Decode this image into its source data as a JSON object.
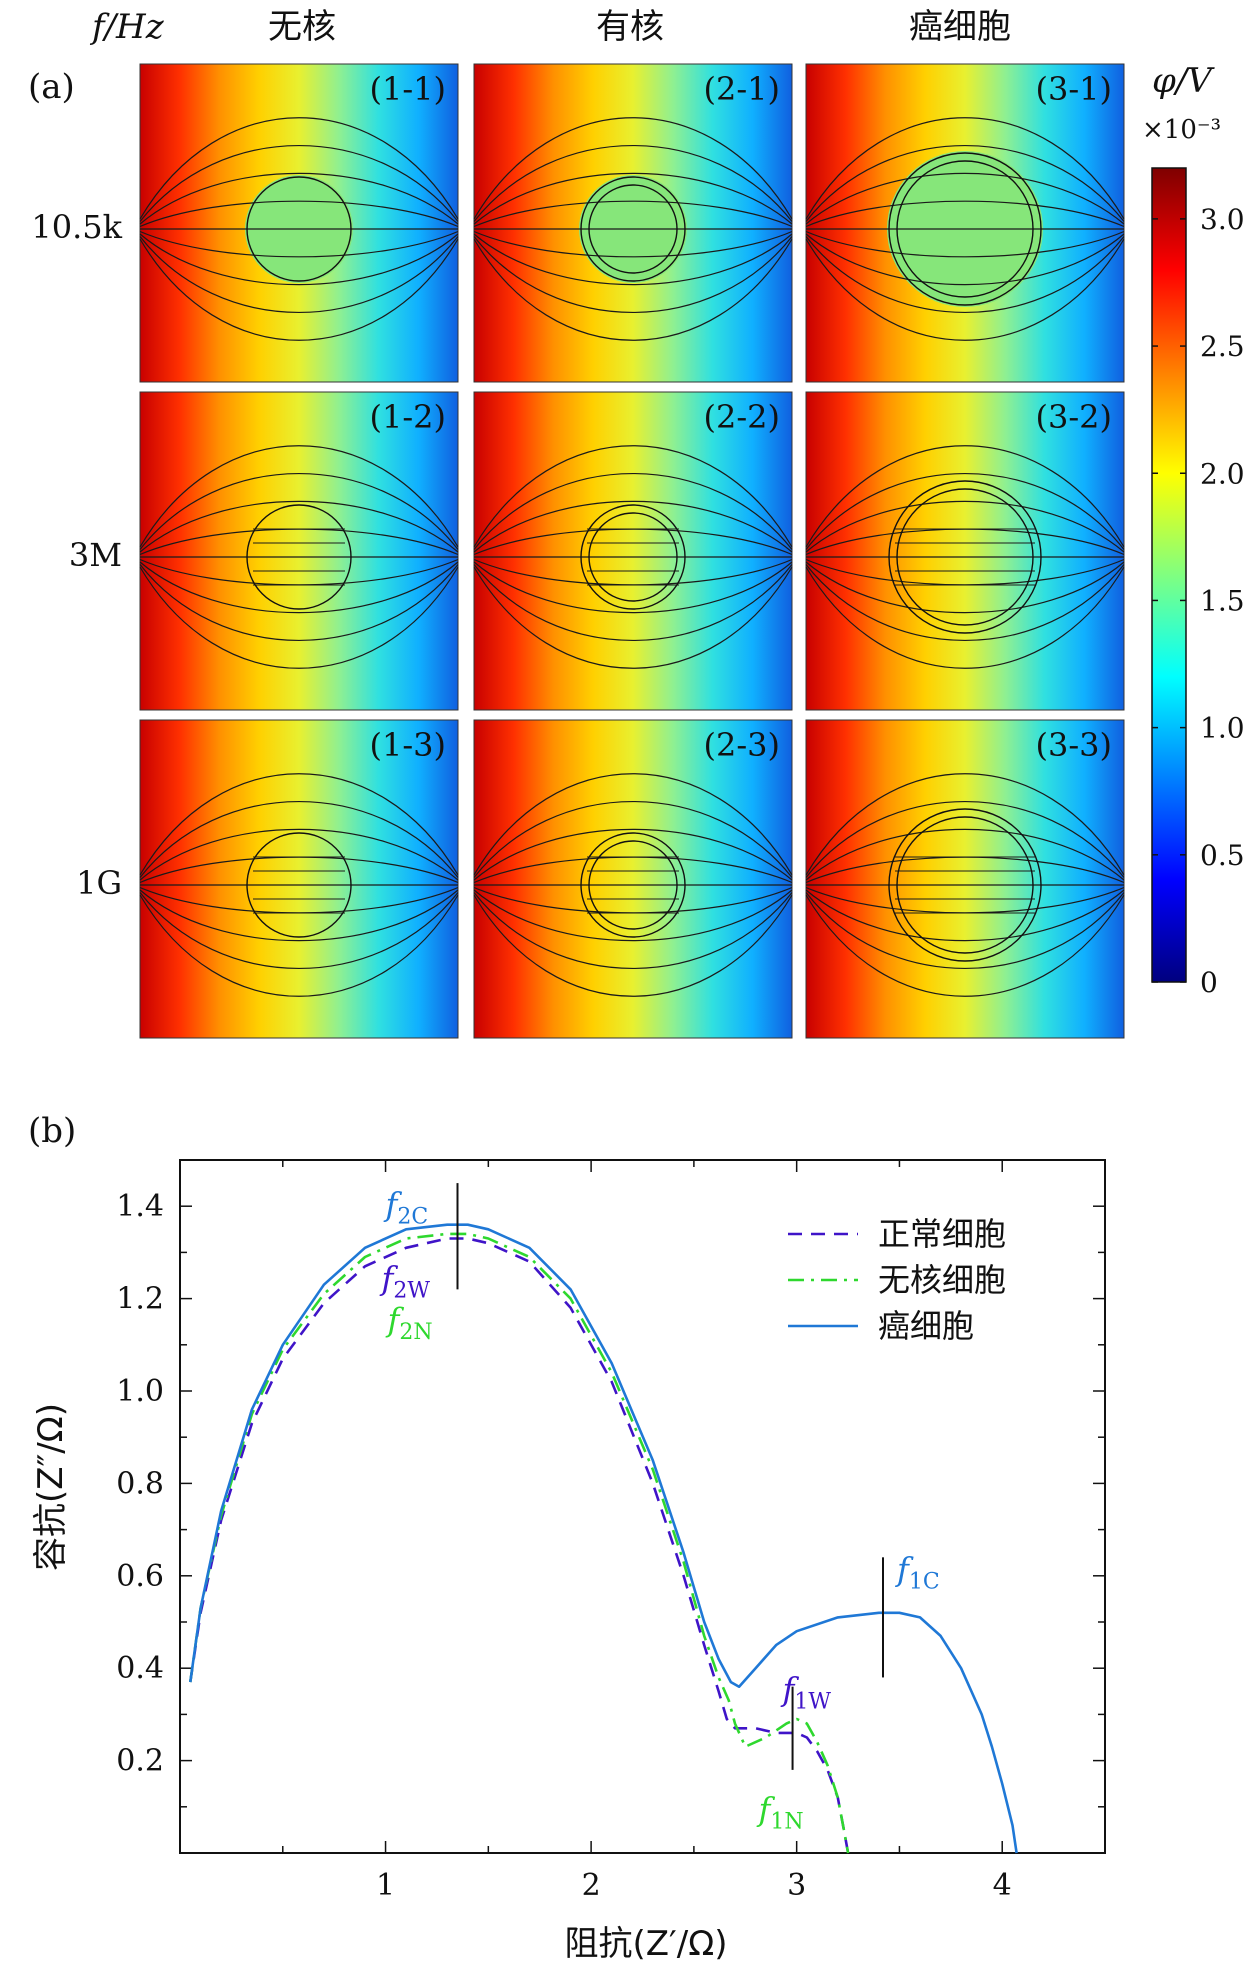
{
  "chart_data": [
    {
      "type": "heatmap",
      "panel_label": "(a)",
      "row_header": "f/Hz",
      "column_headers": [
        "无核",
        "有核",
        "癌细胞"
      ],
      "row_labels": [
        "10.5k",
        "3M",
        "1G"
      ],
      "cell_labels": [
        [
          "(1-1)",
          "(2-1)",
          "(3-1)"
        ],
        [
          "(1-2)",
          "(2-2)",
          "(3-2)"
        ],
        [
          "(1-3)",
          "(2-3)",
          "(3-3)"
        ]
      ],
      "colorbar": {
        "label": "φ/V",
        "multiplier": "×10⁻³",
        "ticks": [
          "3.0",
          "2.5",
          "2.0",
          "1.5",
          "1.0",
          "0.5",
          "0"
        ],
        "range": [
          0,
          3.2
        ],
        "colormap": "jet"
      }
    },
    {
      "type": "line",
      "panel_label": "(b)",
      "xlabel": "阻抗(Z′/Ω)",
      "ylabel": "容抗(Z″/Ω)",
      "xlim": [
        0,
        4.5
      ],
      "ylim": [
        0,
        1.5
      ],
      "xticks": [
        "1",
        "2",
        "3",
        "4"
      ],
      "yticks": [
        "0.2",
        "0.4",
        "0.6",
        "0.8",
        "1.0",
        "1.2",
        "1.4"
      ],
      "legend_position": "top-right",
      "series": [
        {
          "name": "正常细胞",
          "style": "dashed",
          "color": "#3f14c8",
          "x": [
            0.05,
            0.1,
            0.2,
            0.35,
            0.5,
            0.7,
            0.9,
            1.1,
            1.3,
            1.4,
            1.5,
            1.7,
            1.9,
            2.1,
            2.3,
            2.45,
            2.55,
            2.62,
            2.66,
            2.7,
            2.8,
            2.9,
            3.0,
            3.05,
            3.1,
            3.15,
            3.2,
            3.23,
            3.25
          ],
          "y": [
            0.37,
            0.52,
            0.72,
            0.93,
            1.07,
            1.19,
            1.27,
            1.31,
            1.33,
            1.33,
            1.32,
            1.28,
            1.18,
            1.02,
            0.8,
            0.6,
            0.45,
            0.35,
            0.29,
            0.27,
            0.27,
            0.26,
            0.26,
            0.25,
            0.22,
            0.18,
            0.12,
            0.05,
            0.0
          ]
        },
        {
          "name": "无核细胞",
          "style": "dashdot",
          "color": "#2ed82e",
          "x": [
            0.05,
            0.1,
            0.2,
            0.35,
            0.5,
            0.7,
            0.9,
            1.1,
            1.3,
            1.4,
            1.5,
            1.7,
            1.9,
            2.1,
            2.3,
            2.45,
            2.55,
            2.62,
            2.67,
            2.7,
            2.75,
            2.85,
            2.95,
            3.0,
            3.05,
            3.1,
            3.15,
            3.2,
            3.23,
            3.25
          ],
          "y": [
            0.37,
            0.53,
            0.73,
            0.95,
            1.09,
            1.21,
            1.29,
            1.33,
            1.34,
            1.34,
            1.33,
            1.29,
            1.2,
            1.04,
            0.83,
            0.63,
            0.47,
            0.38,
            0.33,
            0.28,
            0.23,
            0.25,
            0.28,
            0.29,
            0.28,
            0.24,
            0.19,
            0.12,
            0.05,
            0.0
          ]
        },
        {
          "name": "癌细胞",
          "style": "solid",
          "color": "#1f78d6",
          "x": [
            0.05,
            0.1,
            0.2,
            0.35,
            0.5,
            0.7,
            0.9,
            1.1,
            1.3,
            1.4,
            1.5,
            1.7,
            1.9,
            2.1,
            2.3,
            2.45,
            2.55,
            2.62,
            2.68,
            2.72,
            2.8,
            2.9,
            3.0,
            3.2,
            3.4,
            3.5,
            3.6,
            3.7,
            3.8,
            3.9,
            3.95,
            4.0,
            4.05,
            4.07
          ],
          "y": [
            0.37,
            0.53,
            0.74,
            0.96,
            1.1,
            1.23,
            1.31,
            1.35,
            1.36,
            1.36,
            1.35,
            1.31,
            1.22,
            1.06,
            0.85,
            0.65,
            0.5,
            0.42,
            0.37,
            0.36,
            0.4,
            0.45,
            0.48,
            0.51,
            0.52,
            0.52,
            0.51,
            0.47,
            0.4,
            0.3,
            0.23,
            0.15,
            0.06,
            0.0
          ]
        }
      ],
      "annotations": [
        {
          "text": "f",
          "sub": "2C",
          "color": "#1f78d6",
          "x": 1.35
        },
        {
          "text": "f",
          "sub": "2W",
          "color": "#3f14c8",
          "x": 1.35
        },
        {
          "text": "f",
          "sub": "2N",
          "color": "#2ed82e",
          "x": 1.35
        },
        {
          "text": "f",
          "sub": "1C",
          "color": "#1f78d6",
          "x": 3.42
        },
        {
          "text": "f",
          "sub": "1W",
          "color": "#3f14c8",
          "x": 2.98
        },
        {
          "text": "f",
          "sub": "1N",
          "color": "#2ed82e",
          "x": 2.98
        }
      ]
    }
  ]
}
